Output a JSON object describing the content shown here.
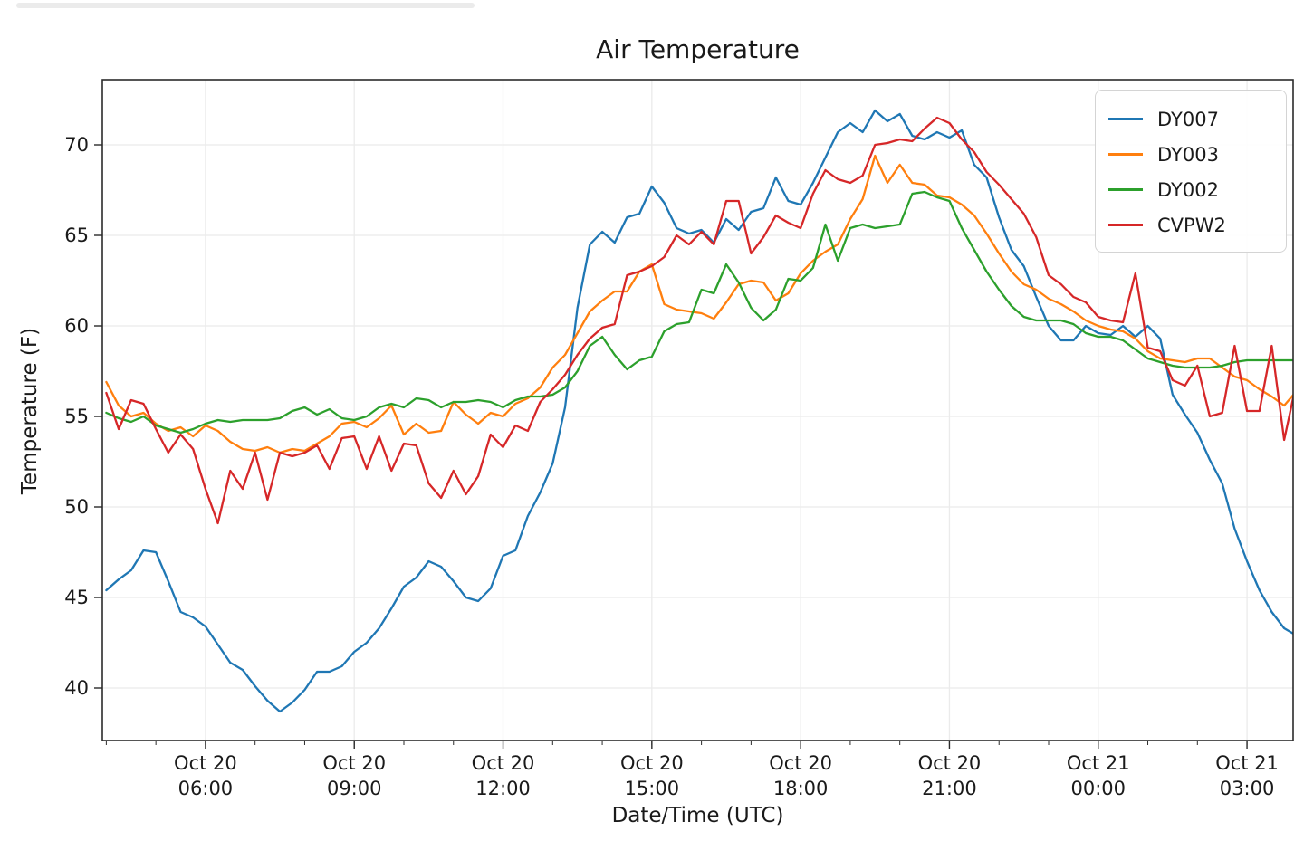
{
  "page": {
    "top_bar_present": true,
    "background_color": "#ffffff"
  },
  "chart_data": {
    "type": "line",
    "title": "Air Temperature",
    "xlabel": "Date/Time (UTC)",
    "ylabel": "Temperature (F)",
    "legend_position": "upper right",
    "grid": true,
    "grid_color": "#ebebeb",
    "axis_color": "#2b2b2b",
    "xlim_hours": [
      3.92,
      27.93
    ],
    "ylim": [
      37.1,
      73.6
    ],
    "y_ticks": [
      40,
      45,
      50,
      55,
      60,
      65,
      70
    ],
    "x_major_ticks_hours": [
      6,
      9,
      12,
      15,
      18,
      21,
      24,
      27
    ],
    "x_minor_tick_every_hours": 1,
    "x_tick_labels": [
      {
        "line1": "Oct 20",
        "line2": "06:00"
      },
      {
        "line1": "Oct 20",
        "line2": "09:00"
      },
      {
        "line1": "Oct 20",
        "line2": "12:00"
      },
      {
        "line1": "Oct 20",
        "line2": "15:00"
      },
      {
        "line1": "Oct 20",
        "line2": "18:00"
      },
      {
        "line1": "Oct 20",
        "line2": "21:00"
      },
      {
        "line1": "Oct 21",
        "line2": "00:00"
      },
      {
        "line1": "Oct 21",
        "line2": "03:00"
      }
    ],
    "x_hours": [
      4.0,
      4.25,
      4.5,
      4.75,
      5.0,
      5.25,
      5.5,
      5.75,
      6.0,
      6.25,
      6.5,
      6.75,
      7.0,
      7.25,
      7.5,
      7.75,
      8.0,
      8.25,
      8.5,
      8.75,
      9.0,
      9.25,
      9.5,
      9.75,
      10.0,
      10.25,
      10.5,
      10.75,
      11.0,
      11.25,
      11.5,
      11.75,
      12.0,
      12.25,
      12.5,
      12.75,
      13.0,
      13.25,
      13.5,
      13.75,
      14.0,
      14.25,
      14.5,
      14.75,
      15.0,
      15.25,
      15.5,
      15.75,
      16.0,
      16.25,
      16.5,
      16.75,
      17.0,
      17.25,
      17.5,
      17.75,
      18.0,
      18.25,
      18.5,
      18.75,
      19.0,
      19.25,
      19.5,
      19.75,
      20.0,
      20.25,
      20.5,
      20.75,
      21.0,
      21.25,
      21.5,
      21.75,
      22.0,
      22.25,
      22.5,
      22.75,
      23.0,
      23.25,
      23.5,
      23.75,
      24.0,
      24.25,
      24.5,
      24.75,
      25.0,
      25.25,
      25.5,
      25.75,
      26.0,
      26.25,
      26.5,
      26.75,
      27.0,
      27.25,
      27.5,
      27.75,
      28.0
    ],
    "series": [
      {
        "label": "DY007",
        "color": "#1f77b4",
        "values": [
          45.4,
          46.0,
          46.5,
          47.6,
          47.5,
          45.9,
          44.2,
          43.9,
          43.4,
          42.4,
          41.4,
          41.0,
          40.1,
          39.3,
          38.7,
          39.2,
          39.9,
          40.9,
          40.9,
          41.2,
          42.0,
          42.5,
          43.3,
          44.4,
          45.6,
          46.1,
          47.0,
          46.7,
          45.9,
          45.0,
          44.8,
          45.5,
          47.3,
          47.6,
          49.5,
          50.8,
          52.4,
          55.5,
          61.0,
          64.5,
          65.2,
          64.6,
          66.0,
          66.2,
          67.7,
          66.8,
          65.4,
          65.1,
          65.3,
          64.6,
          65.9,
          65.3,
          66.3,
          66.5,
          68.2,
          66.9,
          66.7,
          67.9,
          69.3,
          70.7,
          71.2,
          70.7,
          71.9,
          71.3,
          71.7,
          70.5,
          70.3,
          70.7,
          70.4,
          70.8,
          68.9,
          68.2,
          66.0,
          64.2,
          63.3,
          61.6,
          60.0,
          59.2,
          59.2,
          60.0,
          59.6,
          59.5,
          60.0,
          59.4,
          60.0,
          59.3,
          56.2,
          55.1,
          54.1,
          52.6,
          51.3,
          48.8,
          47.0,
          45.4,
          44.2,
          43.3,
          42.9
        ]
      },
      {
        "label": "DY003",
        "color": "#ff7f0e",
        "values": [
          56.9,
          55.6,
          55.0,
          55.2,
          54.6,
          54.2,
          54.4,
          53.9,
          54.5,
          54.2,
          53.6,
          53.2,
          53.1,
          53.3,
          53.0,
          53.2,
          53.1,
          53.5,
          53.9,
          54.6,
          54.7,
          54.4,
          54.9,
          55.6,
          54.0,
          54.6,
          54.1,
          54.2,
          55.8,
          55.1,
          54.6,
          55.2,
          55.0,
          55.7,
          56.0,
          56.6,
          57.7,
          58.4,
          59.6,
          60.8,
          61.4,
          61.9,
          61.9,
          63.0,
          63.4,
          61.2,
          60.9,
          60.8,
          60.7,
          60.4,
          61.3,
          62.3,
          62.5,
          62.4,
          61.4,
          61.8,
          62.9,
          63.6,
          64.1,
          64.5,
          65.9,
          67.0,
          69.4,
          67.9,
          68.9,
          67.9,
          67.8,
          67.2,
          67.1,
          66.7,
          66.1,
          65.1,
          64.0,
          63.0,
          62.3,
          62.0,
          61.5,
          61.2,
          60.8,
          60.3,
          60.0,
          59.8,
          59.7,
          59.3,
          58.6,
          58.2,
          58.1,
          58.0,
          58.2,
          58.2,
          57.7,
          57.2,
          57.0,
          56.5,
          56.1,
          55.6,
          56.4
        ]
      },
      {
        "label": "DY002",
        "color": "#2ca02c",
        "values": [
          55.2,
          54.9,
          54.7,
          55.0,
          54.5,
          54.3,
          54.1,
          54.3,
          54.6,
          54.8,
          54.7,
          54.8,
          54.8,
          54.8,
          54.9,
          55.3,
          55.5,
          55.1,
          55.4,
          54.9,
          54.8,
          55.0,
          55.5,
          55.7,
          55.5,
          56.0,
          55.9,
          55.5,
          55.8,
          55.8,
          55.9,
          55.8,
          55.5,
          55.9,
          56.1,
          56.1,
          56.2,
          56.6,
          57.5,
          58.9,
          59.4,
          58.4,
          57.6,
          58.1,
          58.3,
          59.7,
          60.1,
          60.2,
          62.0,
          61.8,
          63.4,
          62.4,
          61.0,
          60.3,
          60.9,
          62.6,
          62.5,
          63.2,
          65.6,
          63.6,
          65.4,
          65.6,
          65.4,
          65.5,
          65.6,
          67.3,
          67.4,
          67.1,
          66.9,
          65.4,
          64.2,
          63.0,
          62.0,
          61.1,
          60.5,
          60.3,
          60.3,
          60.3,
          60.1,
          59.6,
          59.4,
          59.4,
          59.2,
          58.7,
          58.2,
          58.0,
          57.8,
          57.7,
          57.7,
          57.7,
          57.8,
          58.0,
          58.1,
          58.1,
          58.1,
          58.1,
          58.1
        ]
      },
      {
        "label": "CVPW2",
        "color": "#d62728",
        "values": [
          56.3,
          54.3,
          55.9,
          55.7,
          54.3,
          53.0,
          54.0,
          53.2,
          51.0,
          49.1,
          52.0,
          51.0,
          53.0,
          50.4,
          53.0,
          52.8,
          53.0,
          53.4,
          52.1,
          53.8,
          53.9,
          52.1,
          53.9,
          52.0,
          53.5,
          53.4,
          51.3,
          50.5,
          52.0,
          50.7,
          51.7,
          54.0,
          53.3,
          54.5,
          54.2,
          55.8,
          56.5,
          57.3,
          58.4,
          59.3,
          59.9,
          60.1,
          62.8,
          63.0,
          63.3,
          63.8,
          65.0,
          64.5,
          65.2,
          64.5,
          66.9,
          66.9,
          64.0,
          64.9,
          66.1,
          65.7,
          65.4,
          67.3,
          68.6,
          68.1,
          67.9,
          68.3,
          70.0,
          70.1,
          70.3,
          70.2,
          70.9,
          71.5,
          71.2,
          70.3,
          69.6,
          68.5,
          67.8,
          67.0,
          66.2,
          64.9,
          62.8,
          62.3,
          61.6,
          61.3,
          60.5,
          60.3,
          60.2,
          62.9,
          58.8,
          58.6,
          57.0,
          56.7,
          57.8,
          55.0,
          55.2,
          58.9,
          55.3,
          55.3,
          58.9,
          53.7,
          56.9
        ]
      }
    ]
  }
}
